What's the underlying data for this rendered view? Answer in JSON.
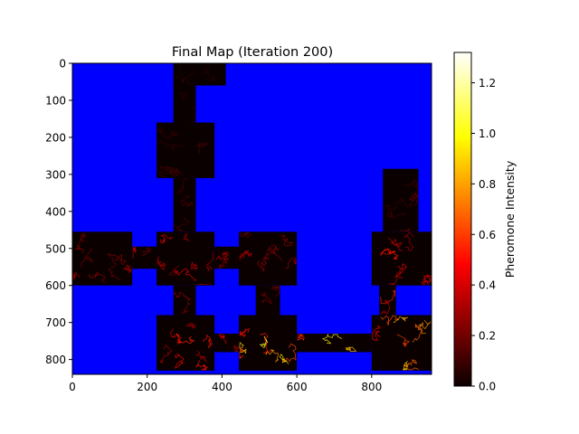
{
  "chart_data": {
    "type": "heatmap",
    "title": "Final Map (Iteration 200)",
    "xlim": [
      0,
      960
    ],
    "ylim": [
      840,
      0
    ],
    "xticks": [
      0,
      200,
      400,
      600,
      800
    ],
    "yticks": [
      0,
      100,
      200,
      300,
      400,
      500,
      600,
      700,
      800
    ],
    "grid": false,
    "background_color": "#0000ff",
    "colorbar": {
      "label": "Pheromone Intensity",
      "range": [
        0.0,
        1.32
      ],
      "ticks": [
        0.0,
        0.2,
        0.4,
        0.6,
        0.8,
        1.0,
        1.2
      ],
      "tick_labels": [
        "0.0",
        "0.2",
        "0.4",
        "0.6",
        "0.8",
        "1.0",
        "1.2"
      ],
      "colormap": "hot"
    },
    "regions": [
      {
        "x0": 270,
        "x1": 410,
        "y0": 0,
        "y1": 60,
        "level": 0.05
      },
      {
        "x0": 270,
        "x1": 330,
        "y0": 0,
        "y1": 160,
        "level": 0.08
      },
      {
        "x0": 225,
        "x1": 380,
        "y0": 160,
        "y1": 310,
        "level": 0.12
      },
      {
        "x0": 270,
        "x1": 330,
        "y0": 310,
        "y1": 455,
        "level": 0.12
      },
      {
        "x0": 0,
        "x1": 160,
        "y0": 455,
        "y1": 600,
        "level": 0.3
      },
      {
        "x0": 160,
        "x1": 225,
        "y0": 495,
        "y1": 555,
        "level": 0.3
      },
      {
        "x0": 225,
        "x1": 380,
        "y0": 455,
        "y1": 600,
        "level": 0.35
      },
      {
        "x0": 380,
        "x1": 445,
        "y0": 495,
        "y1": 555,
        "level": 0.3
      },
      {
        "x0": 445,
        "x1": 600,
        "y0": 455,
        "y1": 600,
        "level": 0.3
      },
      {
        "x0": 270,
        "x1": 330,
        "y0": 600,
        "y1": 680,
        "level": 0.25
      },
      {
        "x0": 490,
        "x1": 555,
        "y0": 600,
        "y1": 680,
        "level": 0.3
      },
      {
        "x0": 225,
        "x1": 380,
        "y0": 680,
        "y1": 830,
        "level": 0.45
      },
      {
        "x0": 380,
        "x1": 445,
        "y0": 730,
        "y1": 780,
        "level": 0.45
      },
      {
        "x0": 445,
        "x1": 600,
        "y0": 680,
        "y1": 830,
        "level": 0.85
      },
      {
        "x0": 600,
        "x1": 800,
        "y0": 730,
        "y1": 780,
        "level": 0.9
      },
      {
        "x0": 800,
        "x1": 960,
        "y0": 680,
        "y1": 830,
        "level": 0.75
      },
      {
        "x0": 820,
        "x1": 865,
        "y0": 600,
        "y1": 680,
        "level": 0.5
      },
      {
        "x0": 800,
        "x1": 960,
        "y0": 455,
        "y1": 600,
        "level": 0.45
      },
      {
        "x0": 830,
        "x1": 925,
        "y0": 285,
        "y1": 455,
        "level": 0.2
      }
    ]
  }
}
